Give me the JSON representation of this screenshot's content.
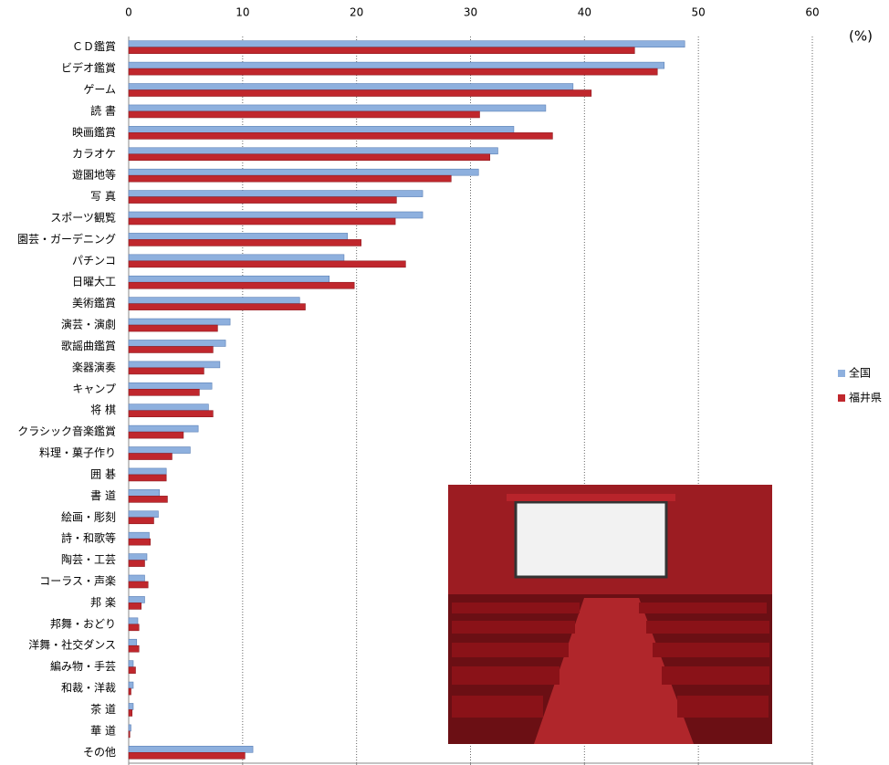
{
  "chart_data": {
    "type": "hbar",
    "unit": "(%)",
    "categories": [
      "ＣＤ鑑賞",
      "ビデオ鑑賞",
      "ゲーム",
      "読 書",
      "映画鑑賞",
      "カラオケ",
      "遊園地等",
      "写 真",
      "スポーツ観覧",
      "園芸・ガーデニング",
      "パチンコ",
      "日曜大工",
      "美術鑑賞",
      "演芸・演劇",
      "歌謡曲鑑賞",
      "楽器演奏",
      "キャンプ",
      "将 棋",
      "クラシック音楽鑑賞",
      "料理・菓子作り",
      "囲 碁",
      "書 道",
      "絵画・彫刻",
      "詩・和歌等",
      "陶芸・工芸",
      "コーラス・声楽",
      "邦 楽",
      "邦舞・おどり",
      "洋舞・社交ダンス",
      "編み物・手芸",
      "和裁・洋裁",
      "茶 道",
      "華 道",
      "その他"
    ],
    "series": [
      {
        "name": "全国",
        "color": "#8eb0de",
        "values": [
          48.8,
          47.0,
          39.0,
          36.6,
          33.8,
          32.4,
          30.7,
          25.8,
          25.8,
          19.2,
          18.9,
          17.6,
          15.0,
          8.9,
          8.5,
          8.0,
          7.3,
          7.0,
          6.1,
          5.4,
          3.3,
          2.7,
          2.6,
          1.8,
          1.6,
          1.4,
          1.4,
          0.8,
          0.7,
          0.4,
          0.4,
          0.4,
          0.2,
          10.9
        ]
      },
      {
        "name": "福井県",
        "color": "#c0272d",
        "values": [
          44.4,
          46.4,
          40.6,
          30.8,
          37.2,
          31.7,
          28.3,
          23.5,
          23.4,
          20.4,
          24.3,
          19.8,
          15.5,
          7.8,
          7.4,
          6.6,
          6.2,
          7.4,
          4.8,
          3.8,
          3.3,
          3.4,
          2.2,
          1.9,
          1.4,
          1.7,
          1.1,
          0.9,
          0.9,
          0.6,
          0.2,
          0.3,
          0.1,
          10.2
        ]
      }
    ],
    "xlim": [
      0,
      60
    ],
    "xticks": [
      0,
      10,
      20,
      30,
      40,
      50,
      60
    ],
    "grid": true
  }
}
